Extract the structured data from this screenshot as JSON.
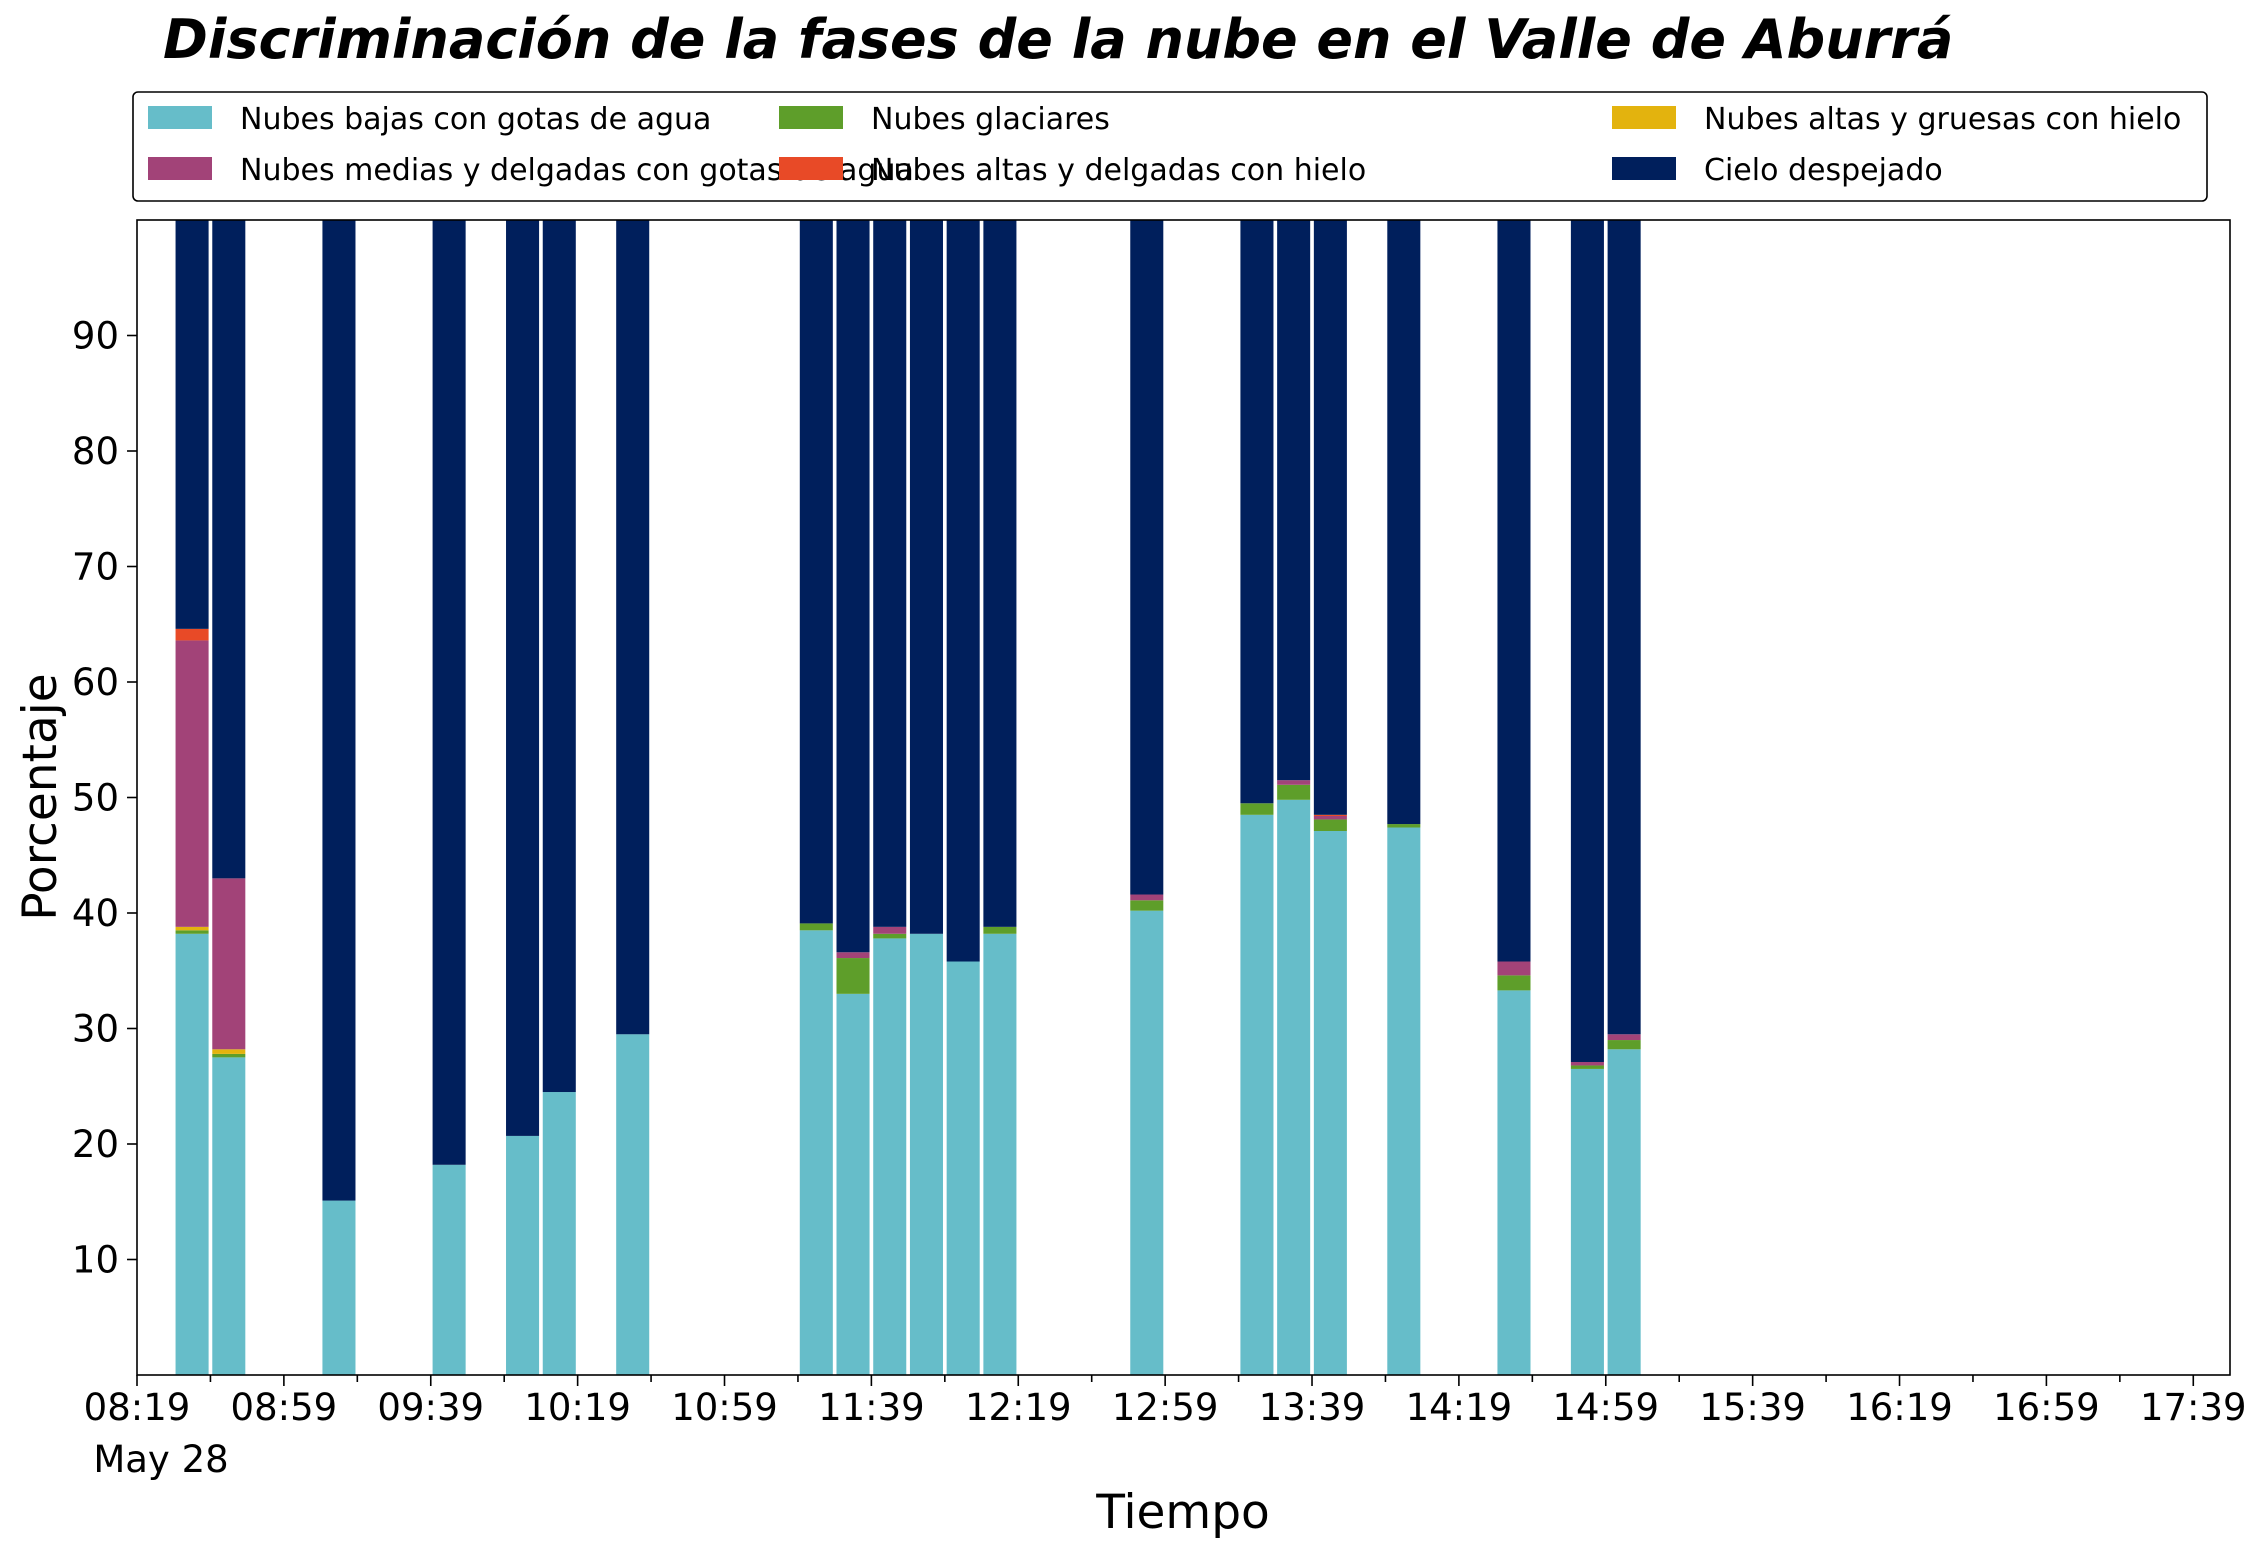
{
  "chart_data": {
    "type": "bar",
    "stacked": true,
    "title": "Discriminación de la fases de la nube en el Valle de Aburrá",
    "xlabel": "Tiempo",
    "ylabel": "Porcentaje",
    "ylim": [
      0,
      100
    ],
    "yticks": [
      10,
      20,
      30,
      40,
      50,
      60,
      70,
      80,
      90
    ],
    "date_label": "May 28",
    "x_tick_labels": [
      "08:19",
      "08:59",
      "09:39",
      "10:19",
      "10:59",
      "11:39",
      "12:19",
      "12:59",
      "13:39",
      "14:19",
      "14:59",
      "15:39",
      "16:19",
      "16:59",
      "17:39"
    ],
    "xlim_minutes": [
      "08:19",
      "17:49"
    ],
    "bar_width_minutes": 9,
    "grid": false,
    "legend_position": "top",
    "legend_columns": 3,
    "categories": [
      "08:34",
      "08:44",
      "09:14",
      "09:44",
      "10:04",
      "10:14",
      "10:34",
      "11:24",
      "11:34",
      "11:44",
      "11:54",
      "12:04",
      "12:14",
      "12:54",
      "13:24",
      "13:34",
      "13:44",
      "14:04",
      "14:34",
      "14:54",
      "15:04"
    ],
    "series": [
      {
        "name": "Nubes bajas con gotas de agua",
        "color": "#66bdc9",
        "values": [
          38.2,
          27.5,
          15.1,
          18.2,
          20.7,
          24.5,
          29.5,
          38.5,
          33.0,
          37.8,
          38.2,
          35.8,
          38.2,
          40.2,
          48.5,
          49.8,
          47.1,
          47.4,
          33.3,
          26.5,
          28.2
        ]
      },
      {
        "name": "Nubes glaciares",
        "color": "#5e9e2a",
        "values": [
          0.3,
          0.3,
          0,
          0,
          0,
          0,
          0,
          0.6,
          3.1,
          0.4,
          0,
          0,
          0.6,
          0.9,
          1.0,
          1.3,
          1.0,
          0.3,
          1.3,
          0.3,
          0.8
        ]
      },
      {
        "name": "Nubes altas y gruesas con hielo",
        "color": "#e3b30e",
        "values": [
          0.3,
          0.4,
          0,
          0,
          0,
          0,
          0,
          0,
          0,
          0,
          0,
          0,
          0,
          0,
          0,
          0,
          0,
          0,
          0,
          0,
          0
        ]
      },
      {
        "name": "Nubes medias y delgadas con gotas de agua",
        "color": "#a24378",
        "values": [
          24.8,
          14.8,
          0,
          0,
          0,
          0,
          0,
          0,
          0.5,
          0.6,
          0,
          0,
          0,
          0.5,
          0,
          0.4,
          0.3,
          0,
          1.2,
          0.3,
          0.5
        ]
      },
      {
        "name": "Nubes altas y delgadas con hielo",
        "color": "#e84a27",
        "values": [
          1.0,
          0,
          0,
          0,
          0,
          0,
          0,
          0,
          0,
          0,
          0,
          0,
          0,
          0,
          0,
          0,
          0.1,
          0,
          0,
          0,
          0
        ]
      },
      {
        "name": "Cielo despejado",
        "color": "#001f5c",
        "values": [
          35.4,
          57.0,
          84.9,
          81.8,
          79.3,
          75.5,
          70.5,
          60.9,
          63.4,
          61.2,
          61.8,
          64.2,
          61.2,
          58.4,
          50.5,
          48.5,
          51.5,
          52.3,
          64.2,
          72.9,
          70.5
        ]
      }
    ]
  }
}
